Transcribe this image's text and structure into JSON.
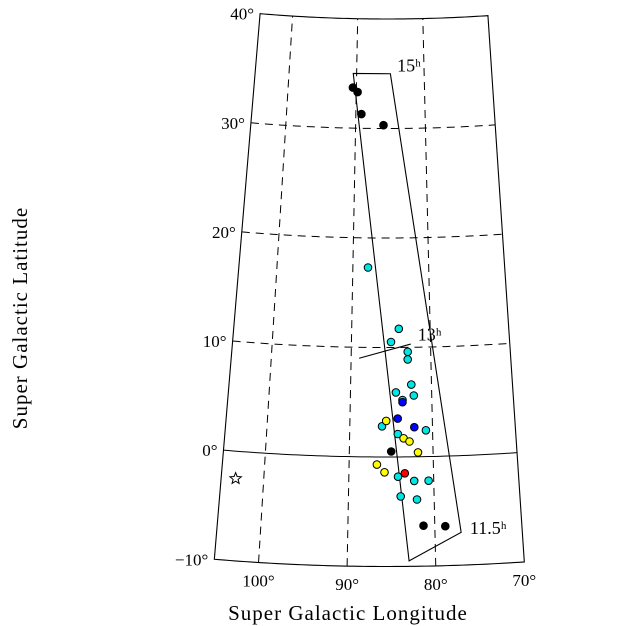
{
  "chart_data": {
    "type": "scatter",
    "projection": "conic sky map",
    "xlabel": "Super Galactic Longitude",
    "ylabel": "Super Galactic Latitude",
    "xlim": [
      105,
      70
    ],
    "ylim": [
      -10,
      40
    ],
    "grid": "dashed",
    "x_ticks": [
      {
        "value": 100,
        "label": "100°"
      },
      {
        "value": 90,
        "label": "90°"
      },
      {
        "value": 80,
        "label": "80°"
      },
      {
        "value": 70,
        "label": "70°"
      }
    ],
    "y_ticks": [
      {
        "value": 40,
        "label": "40°"
      },
      {
        "value": 30,
        "label": "30°"
      },
      {
        "value": 20,
        "label": "20°"
      },
      {
        "value": 10,
        "label": "10°"
      },
      {
        "value": 0,
        "label": "0°"
      },
      {
        "value": -10,
        "label": "−10°"
      }
    ],
    "survey_strip": {
      "corners": [
        {
          "lon": 90.5,
          "lat": 35.0
        },
        {
          "lon": 85.0,
          "lat": 35.0
        },
        {
          "lon": 77.0,
          "lat": -7.0
        },
        {
          "lon": 83.0,
          "lat": -9.5
        }
      ],
      "dividers": [
        {
          "from": {
            "lon": 89.0,
            "lat": 9.0
          },
          "to": {
            "lon": 82.5,
            "lat": 10.3
          }
        }
      ],
      "ra_labels": [
        {
          "text": "15ʰ",
          "lon": 84.0,
          "lat": 35.2
        },
        {
          "text": "13ʰ",
          "lon": 81.6,
          "lat": 10.6
        },
        {
          "text": "11.5ʰ",
          "lon": 76.0,
          "lat": -7.2
        }
      ]
    },
    "series": [
      {
        "color": "#000000",
        "points": [
          {
            "x": 90.5,
            "y": 33.7
          },
          {
            "x": 89.8,
            "y": 33.3
          },
          {
            "x": 89.2,
            "y": 31.3
          },
          {
            "x": 86.0,
            "y": 30.3
          },
          {
            "x": 85.0,
            "y": 0.5
          },
          {
            "x": 81.3,
            "y": -6.3
          },
          {
            "x": 78.8,
            "y": -6.4
          }
        ]
      },
      {
        "color": "#00e5e5",
        "points": [
          {
            "x": 88.0,
            "y": 17.3
          },
          {
            "x": 84.0,
            "y": 11.7
          },
          {
            "x": 85.0,
            "y": 10.5
          },
          {
            "x": 82.9,
            "y": 9.6
          },
          {
            "x": 82.9,
            "y": 8.9
          },
          {
            "x": 82.5,
            "y": 6.6
          },
          {
            "x": 84.4,
            "y": 5.9
          },
          {
            "x": 82.2,
            "y": 5.6
          },
          {
            "x": 83.6,
            "y": 5.2
          },
          {
            "x": 86.1,
            "y": 2.8
          },
          {
            "x": 84.2,
            "y": 2.1
          },
          {
            "x": 80.8,
            "y": 2.4
          },
          {
            "x": 84.2,
            "y": -1.8
          },
          {
            "x": 82.3,
            "y": -2.2
          },
          {
            "x": 80.6,
            "y": -2.2
          },
          {
            "x": 83.9,
            "y": -3.6
          },
          {
            "x": 82.0,
            "y": -3.9
          }
        ]
      },
      {
        "color": "#ffff00",
        "points": [
          {
            "x": 85.6,
            "y": 3.3
          },
          {
            "x": 83.5,
            "y": 1.7
          },
          {
            "x": 82.8,
            "y": 1.4
          },
          {
            "x": 81.8,
            "y": 0.4
          },
          {
            "x": 86.7,
            "y": -0.7
          },
          {
            "x": 85.8,
            "y": -1.4
          }
        ]
      },
      {
        "color": "#0000ff",
        "points": [
          {
            "x": 83.6,
            "y": 5.0
          },
          {
            "x": 84.2,
            "y": 3.5
          },
          {
            "x": 82.2,
            "y": 2.7
          }
        ]
      },
      {
        "color": "#ff0000",
        "points": [
          {
            "x": 83.4,
            "y": -1.5
          }
        ]
      }
    ],
    "markers": [
      {
        "shape": "star",
        "x": 103.3,
        "y": -2.5
      }
    ]
  }
}
